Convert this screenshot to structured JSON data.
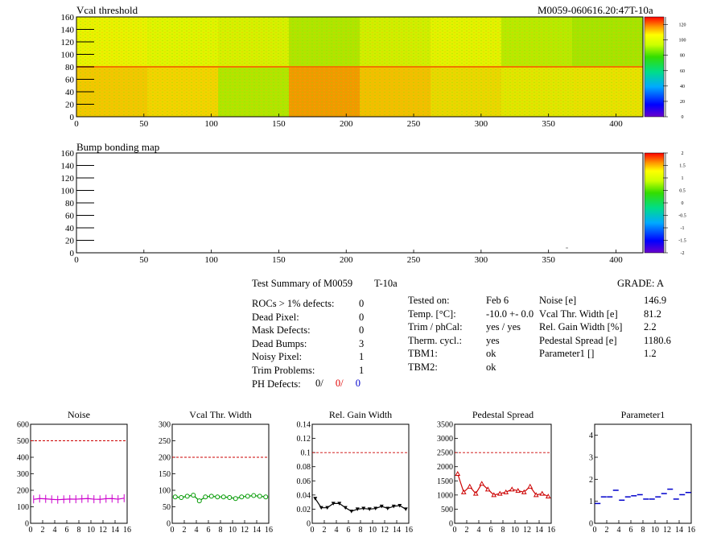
{
  "header": {
    "right_title": "M0059-060616.20:47T-10a"
  },
  "maps": [
    {
      "title": "Vcal threshold",
      "x_ticks": [
        "0",
        "50",
        "100",
        "150",
        "200",
        "250",
        "300",
        "350",
        "400"
      ],
      "y_ticks": [
        "0",
        "20",
        "40",
        "60",
        "80",
        "100",
        "120",
        "140",
        "160"
      ],
      "z_ticks": [
        "0",
        "20",
        "40",
        "60",
        "80",
        "100",
        "120"
      ]
    },
    {
      "title": "Bump bonding map",
      "x_ticks": [
        "0",
        "50",
        "100",
        "150",
        "200",
        "250",
        "300",
        "350",
        "400"
      ],
      "y_ticks": [
        "0",
        "20",
        "40",
        "60",
        "80",
        "100",
        "120",
        "140",
        "160"
      ],
      "z_ticks": [
        "-2",
        "-1.5",
        "-1",
        "-0.5",
        "0",
        "0.5",
        "1",
        "1.5",
        "2"
      ]
    }
  ],
  "summary": {
    "title": "Test Summary of M0059",
    "test": "T-10a",
    "grade": "GRADE:  A",
    "left_rows": [
      {
        "label": "ROCs > 1% defects:",
        "value": "0"
      },
      {
        "label": "Dead Pixel:",
        "value": "0"
      },
      {
        "label": "Mask Defects:",
        "value": "0"
      },
      {
        "label": "Dead Bumps:",
        "value": "3"
      },
      {
        "label": "Noisy Pixel:",
        "value": "1"
      },
      {
        "label": "Trim Problems:",
        "value": "1"
      }
    ],
    "ph_label": "PH Defects:",
    "ph_values": [
      "0/",
      "0/",
      "0"
    ],
    "mid_rows": [
      {
        "label": "Tested on:",
        "value": "Feb 6"
      },
      {
        "label": "Temp. [°C]:",
        "value": "-10.0 +- 0.0"
      },
      {
        "label": "Trim / phCal:",
        "value": "yes / yes"
      },
      {
        "label": "Therm. cycl.:",
        "value": "yes"
      },
      {
        "label": "TBM1:",
        "value": "ok"
      },
      {
        "label": "TBM2:",
        "value": "ok"
      }
    ],
    "right_rows": [
      {
        "label": "Noise [e]",
        "value": "146.9"
      },
      {
        "label": "Vcal Thr. Width [e]",
        "value": "81.2"
      },
      {
        "label": "Rel. Gain Width [%]",
        "value": "2.2"
      },
      {
        "label": "Pedestal Spread [e]",
        "value": "1180.6"
      },
      {
        "label": "Parameter1 []",
        "value": "1.2"
      }
    ]
  },
  "colors": {
    "noise": "#cc00cc",
    "vcal": "#009900",
    "gain": "#000000",
    "pedestal": "#cc0000",
    "param": "#0000cc",
    "limit": "#cc0000"
  },
  "chart_data": [
    {
      "type": "line",
      "title": "Noise",
      "x": [
        0,
        1,
        2,
        3,
        4,
        5,
        6,
        7,
        8,
        9,
        10,
        11,
        12,
        13,
        14,
        15
      ],
      "values": [
        145,
        150,
        148,
        145,
        143,
        145,
        147,
        146,
        148,
        150,
        146,
        145,
        149,
        150,
        146,
        152
      ],
      "ylim": [
        0,
        600
      ],
      "y_ticks": [
        "0",
        "100",
        "200",
        "300",
        "400",
        "500",
        "600"
      ],
      "x_ticks": [
        "0",
        "2",
        "4",
        "6",
        "8",
        "10",
        "12",
        "14",
        "16"
      ],
      "limit": 500
    },
    {
      "type": "line",
      "title": "Vcal Thr. Width",
      "x": [
        0,
        1,
        2,
        3,
        4,
        5,
        6,
        7,
        8,
        9,
        10,
        11,
        12,
        13,
        14,
        15
      ],
      "values": [
        80,
        78,
        82,
        85,
        68,
        80,
        82,
        80,
        80,
        78,
        75,
        80,
        82,
        84,
        82,
        80
      ],
      "ylim": [
        0,
        300
      ],
      "y_ticks": [
        "0",
        "50",
        "100",
        "150",
        "200",
        "250",
        "300"
      ],
      "x_ticks": [
        "0",
        "2",
        "4",
        "6",
        "8",
        "10",
        "12",
        "14",
        "16"
      ],
      "limit": 200
    },
    {
      "type": "line",
      "title": "Rel. Gain Width",
      "x": [
        0,
        1,
        2,
        3,
        4,
        5,
        6,
        7,
        8,
        9,
        10,
        11,
        12,
        13,
        14,
        15
      ],
      "values": [
        0.035,
        0.022,
        0.022,
        0.028,
        0.028,
        0.022,
        0.017,
        0.02,
        0.021,
        0.02,
        0.021,
        0.024,
        0.021,
        0.024,
        0.025,
        0.02
      ],
      "ylim": [
        0,
        0.14
      ],
      "y_ticks": [
        "0",
        "0.02",
        "0.04",
        "0.06",
        "0.08",
        "0.1",
        "0.12",
        "0.14"
      ],
      "x_ticks": [
        "0",
        "2",
        "4",
        "6",
        "8",
        "10",
        "12",
        "14",
        "16"
      ],
      "limit": 0.1
    },
    {
      "type": "line",
      "title": "Pedestal Spread",
      "x": [
        0,
        1,
        2,
        3,
        4,
        5,
        6,
        7,
        8,
        9,
        10,
        11,
        12,
        13,
        14,
        15
      ],
      "values": [
        1750,
        1100,
        1300,
        1050,
        1400,
        1200,
        1000,
        1050,
        1100,
        1200,
        1150,
        1100,
        1300,
        1000,
        1050,
        950
      ],
      "ylim": [
        0,
        3500
      ],
      "y_ticks": [
        "0",
        "500",
        "1000",
        "1500",
        "2000",
        "2500",
        "3000",
        "3500"
      ],
      "x_ticks": [
        "0",
        "2",
        "4",
        "6",
        "8",
        "10",
        "12",
        "14",
        "16"
      ],
      "limit": 2500
    },
    {
      "type": "scatter",
      "title": "Parameter1",
      "x": [
        0,
        1,
        2,
        3,
        4,
        5,
        6,
        7,
        8,
        9,
        10,
        11,
        12,
        13,
        14,
        15
      ],
      "values": [
        0.9,
        1.2,
        1.2,
        1.5,
        1.05,
        1.2,
        1.25,
        1.3,
        1.1,
        1.1,
        1.2,
        1.35,
        1.55,
        1.1,
        1.3,
        1.4
      ],
      "ylim": [
        0,
        4.5
      ],
      "y_ticks": [
        "0",
        "1",
        "2",
        "3",
        "4"
      ],
      "x_ticks": [
        "0",
        "2",
        "4",
        "6",
        "8",
        "10",
        "12",
        "14",
        "16"
      ],
      "limit": null
    }
  ]
}
